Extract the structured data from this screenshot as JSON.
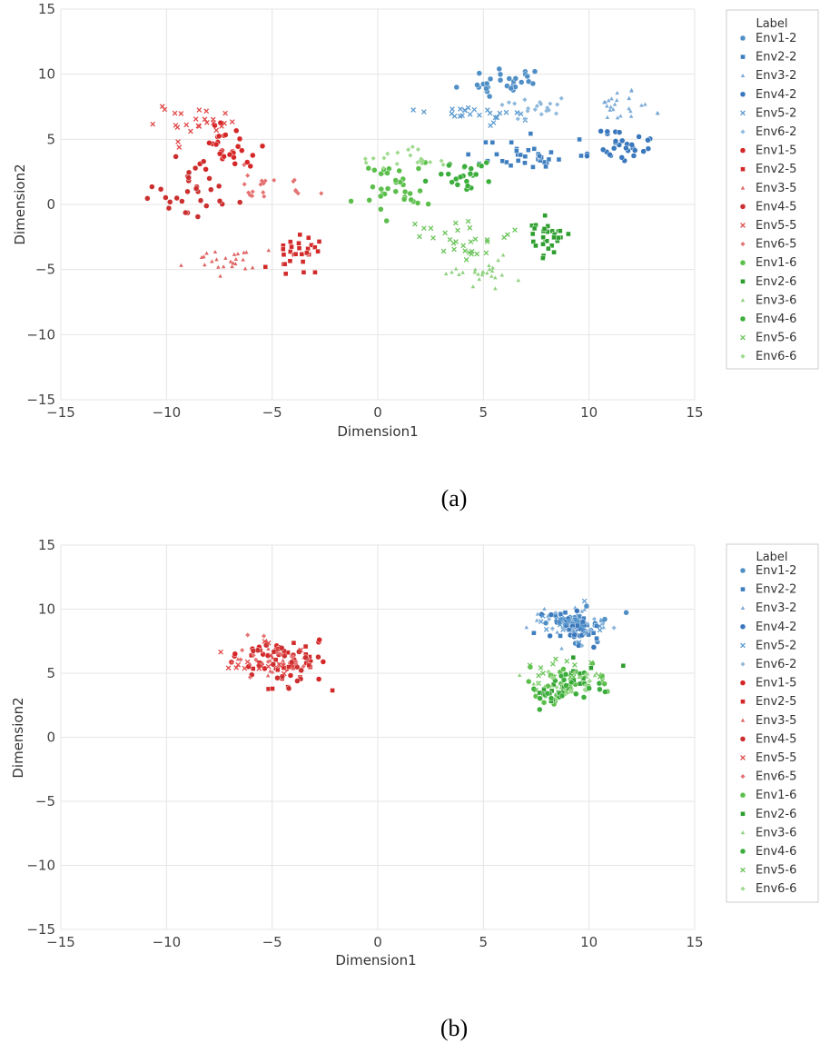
{
  "chart_data": [
    {
      "panel": "(a)",
      "type": "scatter",
      "caption": "(a)",
      "xlabel": "Dimension1",
      "ylabel": "Dimension2",
      "xlim": [
        -15,
        15
      ],
      "ylim": [
        -15,
        15
      ],
      "xticks": [
        -15,
        -10,
        -5,
        0,
        5,
        10,
        15
      ],
      "yticks": [
        -15,
        -10,
        -5,
        0,
        5,
        10,
        15
      ],
      "xtick_labels": [
        "−15",
        "−10",
        "−5",
        "0",
        "5",
        "10",
        "15"
      ],
      "ytick_labels": [
        "−15",
        "−10",
        "−5",
        "0",
        "5",
        "10",
        "15"
      ],
      "grid": true,
      "legend_title": "Label",
      "legend_placement": "outside-right",
      "series": [
        {
          "name": "Env1-2",
          "color": "#4f8fc6",
          "marker": "circle",
          "cluster": {
            "cx": 6.0,
            "cy": 9.5,
            "sx": 0.9,
            "sy": 0.7,
            "n": 30
          }
        },
        {
          "name": "Env2-2",
          "color": "#3f7fc0",
          "marker": "square",
          "cluster": {
            "cx": 7.0,
            "cy": 3.8,
            "sx": 1.1,
            "sy": 0.6,
            "n": 35
          }
        },
        {
          "name": "Env3-2",
          "color": "#7aaad6",
          "marker": "triangle",
          "cluster": {
            "cx": 11.5,
            "cy": 7.6,
            "sx": 0.8,
            "sy": 0.6,
            "n": 25
          }
        },
        {
          "name": "Env4-2",
          "color": "#3a78bd",
          "marker": "circle",
          "cluster": {
            "cx": 11.7,
            "cy": 4.4,
            "sx": 0.8,
            "sy": 0.8,
            "n": 30
          }
        },
        {
          "name": "Env5-2",
          "color": "#5c9bd0",
          "marker": "x",
          "cluster": {
            "cx": 4.5,
            "cy": 6.9,
            "sx": 1.0,
            "sy": 0.4,
            "n": 25
          }
        },
        {
          "name": "Env6-2",
          "color": "#8fb8dc",
          "marker": "diamond",
          "cluster": {
            "cx": 7.5,
            "cy": 7.4,
            "sx": 0.9,
            "sy": 0.5,
            "n": 20
          }
        },
        {
          "name": "Env1-5",
          "color": "#d62728",
          "marker": "circle",
          "cluster": {
            "cx": -7.0,
            "cy": 4.6,
            "sx": 0.9,
            "sy": 0.9,
            "n": 30
          }
        },
        {
          "name": "Env2-5",
          "color": "#d22a2a",
          "marker": "square",
          "cluster": {
            "cx": -3.7,
            "cy": -3.6,
            "sx": 0.6,
            "sy": 0.7,
            "n": 30
          }
        },
        {
          "name": "Env3-5",
          "color": "#e06666",
          "marker": "triangle",
          "cluster": {
            "cx": -7.5,
            "cy": -4.4,
            "sx": 1.0,
            "sy": 0.5,
            "n": 25
          }
        },
        {
          "name": "Env4-5",
          "color": "#cc2f2f",
          "marker": "circle",
          "cluster": {
            "cx": -8.7,
            "cy": 1.1,
            "sx": 1.0,
            "sy": 1.0,
            "n": 30
          }
        },
        {
          "name": "Env5-5",
          "color": "#e04848",
          "marker": "x",
          "cluster": {
            "cx": -8.8,
            "cy": 6.5,
            "sx": 0.9,
            "sy": 0.7,
            "n": 25
          }
        },
        {
          "name": "Env6-5",
          "color": "#e57373",
          "marker": "diamond",
          "cluster": {
            "cx": -4.9,
            "cy": 1.3,
            "sx": 0.8,
            "sy": 0.6,
            "n": 20
          }
        },
        {
          "name": "Env1-6",
          "color": "#5cbf4c",
          "marker": "circle",
          "cluster": {
            "cx": 1.0,
            "cy": 1.2,
            "sx": 1.0,
            "sy": 1.2,
            "n": 35
          }
        },
        {
          "name": "Env2-6",
          "color": "#2e9e2e",
          "marker": "square",
          "cluster": {
            "cx": 7.8,
            "cy": -2.3,
            "sx": 0.7,
            "sy": 0.8,
            "n": 30
          }
        },
        {
          "name": "Env3-6",
          "color": "#8fd17f",
          "marker": "triangle",
          "cluster": {
            "cx": 4.9,
            "cy": -5.2,
            "sx": 0.8,
            "sy": 0.5,
            "n": 25
          }
        },
        {
          "name": "Env4-6",
          "color": "#3cae3c",
          "marker": "circle",
          "cluster": {
            "cx": 4.1,
            "cy": 2.3,
            "sx": 0.7,
            "sy": 0.7,
            "n": 25
          }
        },
        {
          "name": "Env5-6",
          "color": "#6cc55c",
          "marker": "x",
          "cluster": {
            "cx": 3.7,
            "cy": -2.5,
            "sx": 1.0,
            "sy": 0.8,
            "n": 30
          }
        },
        {
          "name": "Env6-6",
          "color": "#9fda8f",
          "marker": "diamond",
          "cluster": {
            "cx": 1.6,
            "cy": 3.6,
            "sx": 1.0,
            "sy": 0.6,
            "n": 20
          }
        }
      ]
    },
    {
      "panel": "(b)",
      "type": "scatter",
      "caption": "(b)",
      "xlabel": "Dimension1",
      "ylabel": "Dimension2",
      "xlim": [
        -15,
        15
      ],
      "ylim": [
        -15,
        15
      ],
      "xticks": [
        -15,
        -10,
        -5,
        0,
        5,
        10,
        15
      ],
      "yticks": [
        -15,
        -10,
        -5,
        0,
        5,
        10,
        15
      ],
      "xtick_labels": [
        "−15",
        "−10",
        "−5",
        "0",
        "5",
        "10",
        "15"
      ],
      "ytick_labels": [
        "−15",
        "−10",
        "−5",
        "0",
        "5",
        "10",
        "15"
      ],
      "grid": true,
      "legend_title": "Label",
      "legend_placement": "outside-right",
      "series": [
        {
          "name": "Env1-2",
          "color": "#4f8fc6",
          "marker": "circle",
          "cluster": {
            "cx": 9.0,
            "cy": 8.8,
            "sx": 0.9,
            "sy": 0.7,
            "n": 25
          }
        },
        {
          "name": "Env2-2",
          "color": "#3f7fc0",
          "marker": "square",
          "cluster": {
            "cx": 9.2,
            "cy": 8.7,
            "sx": 0.9,
            "sy": 0.7,
            "n": 25
          }
        },
        {
          "name": "Env3-2",
          "color": "#7aaad6",
          "marker": "triangle",
          "cluster": {
            "cx": 8.8,
            "cy": 9.0,
            "sx": 1.0,
            "sy": 0.7,
            "n": 20
          }
        },
        {
          "name": "Env4-2",
          "color": "#3a78bd",
          "marker": "circle",
          "cluster": {
            "cx": 9.3,
            "cy": 8.6,
            "sx": 0.9,
            "sy": 0.7,
            "n": 25
          }
        },
        {
          "name": "Env5-2",
          "color": "#5c9bd0",
          "marker": "x",
          "cluster": {
            "cx": 9.0,
            "cy": 8.9,
            "sx": 1.0,
            "sy": 0.8,
            "n": 20
          }
        },
        {
          "name": "Env6-2",
          "color": "#8fb8dc",
          "marker": "diamond",
          "cluster": {
            "cx": 9.1,
            "cy": 8.7,
            "sx": 0.9,
            "sy": 0.7,
            "n": 15
          }
        },
        {
          "name": "Env1-5",
          "color": "#d62728",
          "marker": "circle",
          "cluster": {
            "cx": -4.8,
            "cy": 6.0,
            "sx": 1.0,
            "sy": 0.9,
            "n": 25
          }
        },
        {
          "name": "Env2-5",
          "color": "#d22a2a",
          "marker": "square",
          "cluster": {
            "cx": -4.6,
            "cy": 5.8,
            "sx": 1.0,
            "sy": 0.9,
            "n": 25
          }
        },
        {
          "name": "Env3-5",
          "color": "#e06666",
          "marker": "triangle",
          "cluster": {
            "cx": -5.0,
            "cy": 6.1,
            "sx": 1.1,
            "sy": 0.9,
            "n": 20
          }
        },
        {
          "name": "Env4-5",
          "color": "#cc2f2f",
          "marker": "circle",
          "cluster": {
            "cx": -4.7,
            "cy": 5.9,
            "sx": 1.0,
            "sy": 0.9,
            "n": 25
          }
        },
        {
          "name": "Env5-5",
          "color": "#e04848",
          "marker": "x",
          "cluster": {
            "cx": -5.1,
            "cy": 6.0,
            "sx": 1.1,
            "sy": 0.9,
            "n": 20
          }
        },
        {
          "name": "Env6-5",
          "color": "#e57373",
          "marker": "diamond",
          "cluster": {
            "cx": -4.9,
            "cy": 6.2,
            "sx": 1.0,
            "sy": 0.8,
            "n": 15
          }
        },
        {
          "name": "Env1-6",
          "color": "#5cbf4c",
          "marker": "circle",
          "cluster": {
            "cx": 9.0,
            "cy": 4.2,
            "sx": 1.0,
            "sy": 0.8,
            "n": 25
          }
        },
        {
          "name": "Env2-6",
          "color": "#2e9e2e",
          "marker": "square",
          "cluster": {
            "cx": 9.2,
            "cy": 4.0,
            "sx": 1.0,
            "sy": 0.8,
            "n": 25
          }
        },
        {
          "name": "Env3-6",
          "color": "#8fd17f",
          "marker": "triangle",
          "cluster": {
            "cx": 8.8,
            "cy": 4.4,
            "sx": 1.1,
            "sy": 0.8,
            "n": 20
          }
        },
        {
          "name": "Env4-6",
          "color": "#3cae3c",
          "marker": "circle",
          "cluster": {
            "cx": 9.3,
            "cy": 4.1,
            "sx": 1.0,
            "sy": 0.8,
            "n": 25
          }
        },
        {
          "name": "Env5-6",
          "color": "#6cc55c",
          "marker": "x",
          "cluster": {
            "cx": 8.9,
            "cy": 4.3,
            "sx": 1.1,
            "sy": 0.9,
            "n": 20
          }
        },
        {
          "name": "Env6-6",
          "color": "#9fda8f",
          "marker": "diamond",
          "cluster": {
            "cx": 9.1,
            "cy": 4.2,
            "sx": 1.0,
            "sy": 0.8,
            "n": 15
          }
        }
      ]
    }
  ]
}
